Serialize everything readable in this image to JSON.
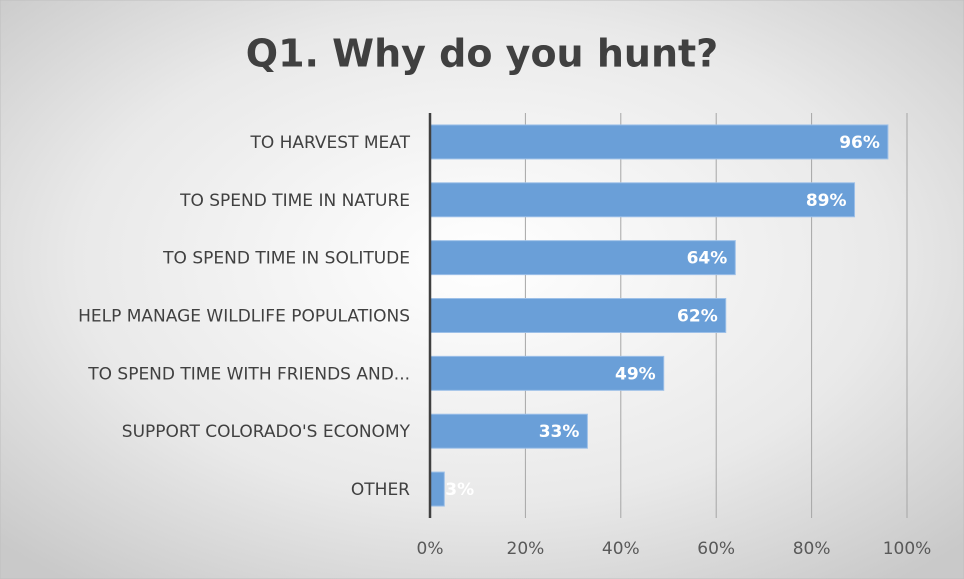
{
  "chart_data": {
    "type": "bar",
    "orientation": "horizontal",
    "title": "Q1. Why do you hunt?",
    "categories": [
      "TO HARVEST MEAT",
      "TO SPEND TIME IN NATURE",
      "TO SPEND TIME IN SOLITUDE",
      "HELP MANAGE WILDLIFE POPULATIONS",
      "TO SPEND TIME WITH FRIENDS AND...",
      "SUPPORT COLORADO'S ECONOMY",
      "OTHER"
    ],
    "values": [
      96,
      89,
      64,
      62,
      49,
      33,
      3
    ],
    "value_labels": [
      "96%",
      "89%",
      "64%",
      "62%",
      "49%",
      "33%",
      "3%"
    ],
    "color": "#6a9fd8",
    "xlim": [
      0,
      100
    ],
    "xticks": [
      {
        "value": 0,
        "label": "0%"
      },
      {
        "value": 20,
        "label": "20%"
      },
      {
        "value": 40,
        "label": "40%"
      },
      {
        "value": 60,
        "label": "60%"
      },
      {
        "value": 80,
        "label": "80%"
      },
      {
        "value": 100,
        "label": "100%"
      }
    ],
    "grid": true
  }
}
